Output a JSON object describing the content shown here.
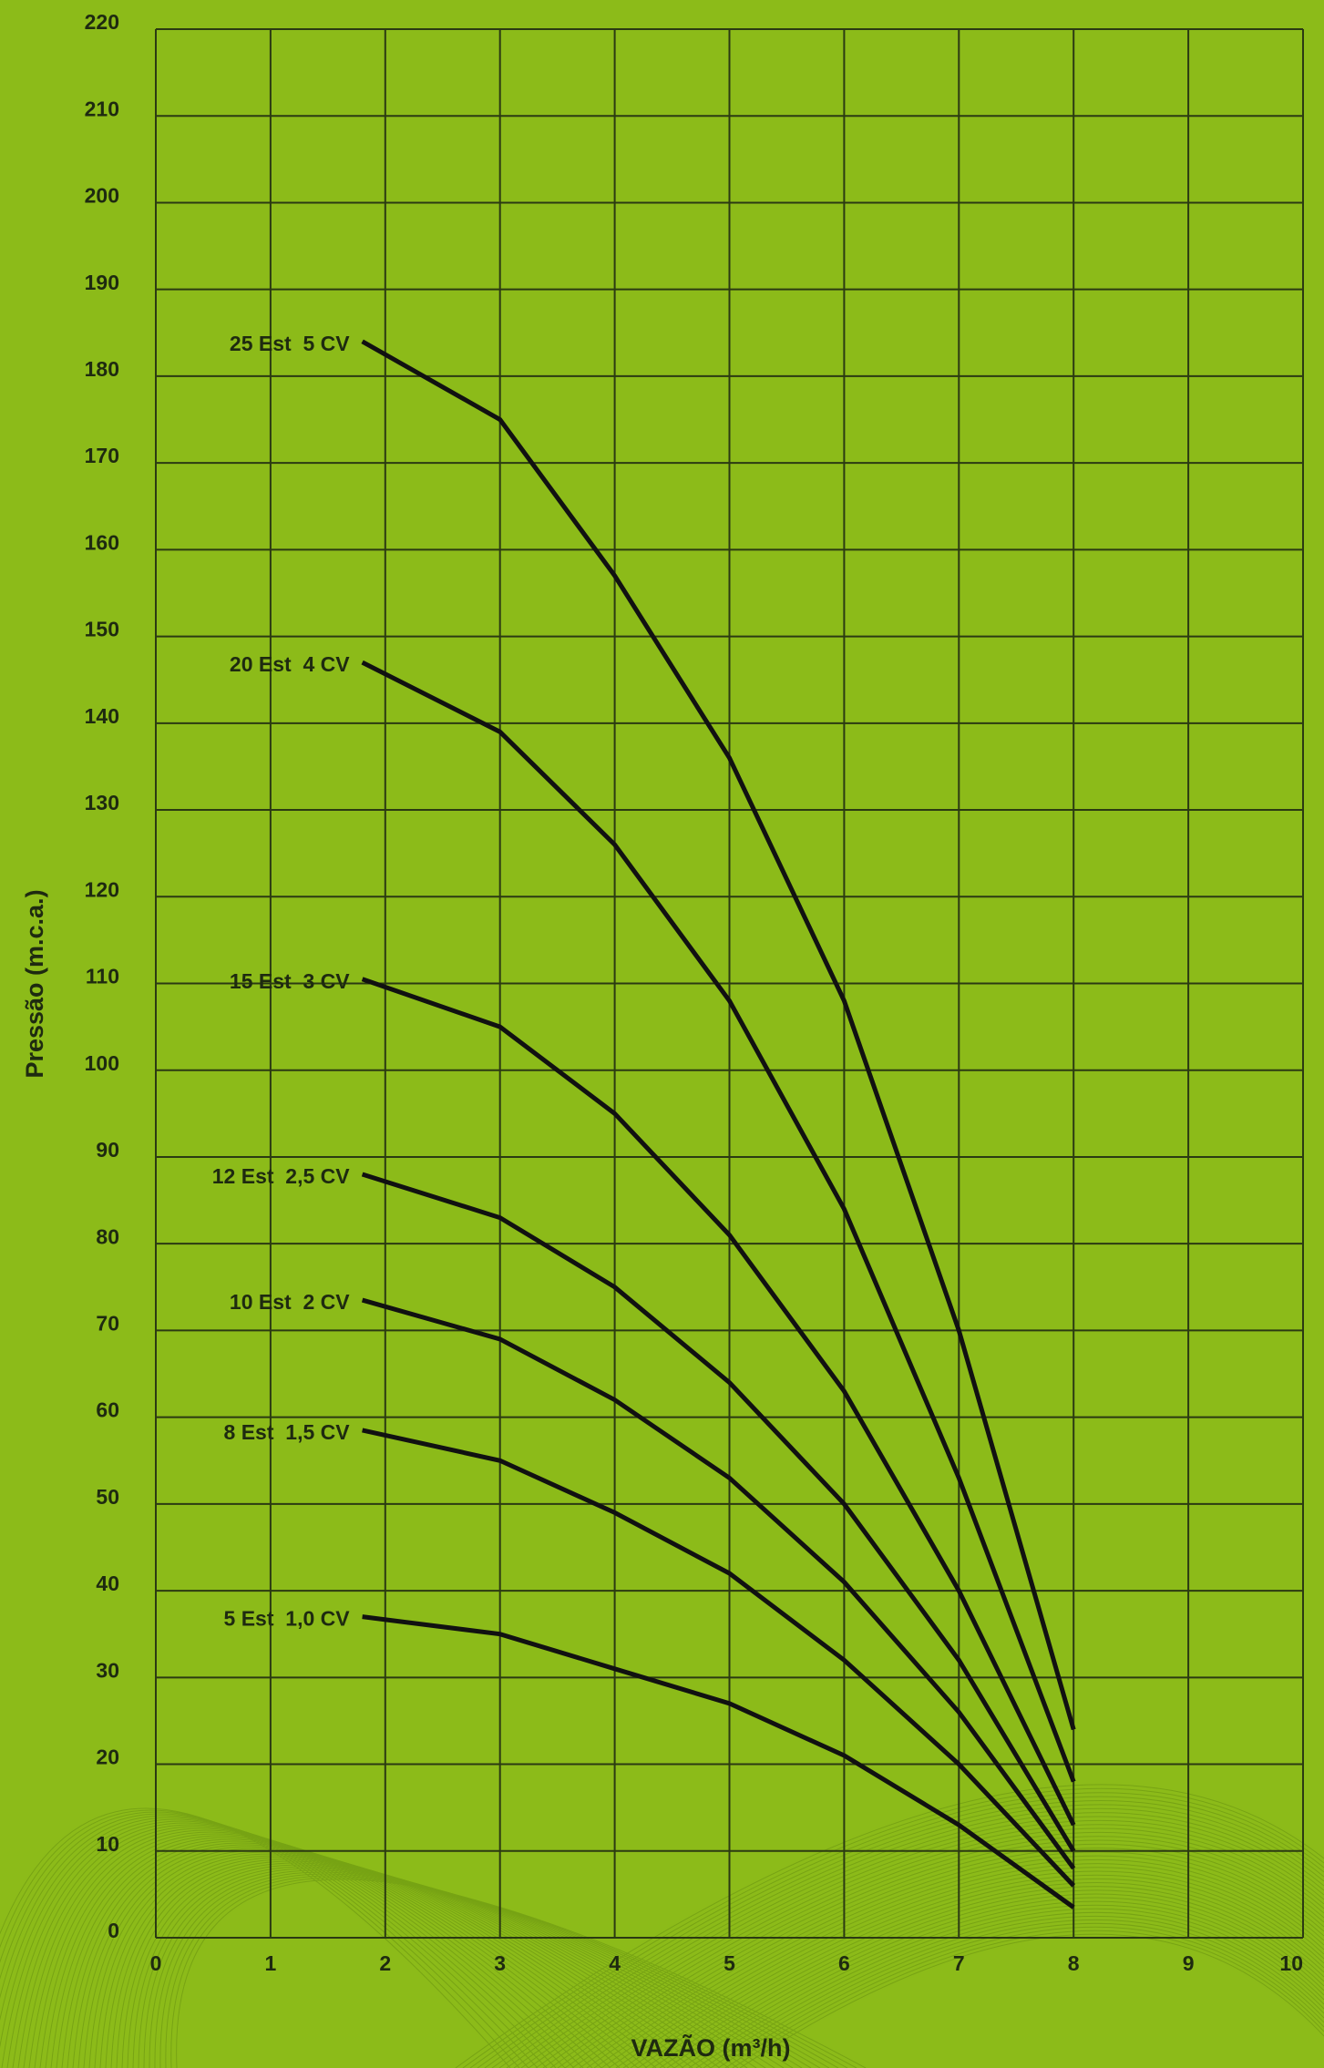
{
  "chart_data": {
    "type": "line",
    "x_label": "VAZÃO (m³/h)",
    "y_label": "Pressão (m.c.a.)",
    "x": [
      1.8,
      3,
      4,
      5,
      6,
      7,
      8
    ],
    "series": [
      {
        "name": "25 Est  5 CV",
        "color": "#111111",
        "values": [
          184,
          175,
          157,
          136,
          108,
          70,
          24
        ]
      },
      {
        "name": "20 Est  4 CV",
        "color": "#111111",
        "values": [
          147,
          139,
          126,
          108,
          84,
          53,
          18
        ]
      },
      {
        "name": "15 Est  3 CV",
        "color": "#111111",
        "values": [
          110.5,
          105,
          95,
          81,
          63,
          40,
          13
        ]
      },
      {
        "name": "12 Est  2,5 CV",
        "color": "#111111",
        "values": [
          88,
          83,
          75,
          64,
          50,
          32,
          10
        ]
      },
      {
        "name": "10 Est  2 CV",
        "color": "#111111",
        "values": [
          73.5,
          69,
          62,
          53,
          41,
          26,
          8
        ]
      },
      {
        "name": "8 Est  1,5 CV",
        "color": "#111111",
        "values": [
          58.5,
          55,
          49,
          42,
          32,
          20,
          6
        ]
      },
      {
        "name": "5 Est  1,0 CV",
        "color": "#111111",
        "values": [
          37,
          35,
          31,
          27,
          21,
          13,
          3.5
        ]
      }
    ],
    "xlim": [
      0,
      10
    ],
    "xticks": [
      0,
      1,
      2,
      3,
      4,
      5,
      6,
      7,
      8,
      9,
      10
    ],
    "ylim": [
      0,
      220
    ],
    "yticks": [
      0,
      10,
      20,
      30,
      40,
      50,
      60,
      70,
      80,
      90,
      100,
      110,
      120,
      130,
      140,
      150,
      160,
      170,
      180,
      190,
      200,
      210,
      220
    ],
    "grid": true
  }
}
